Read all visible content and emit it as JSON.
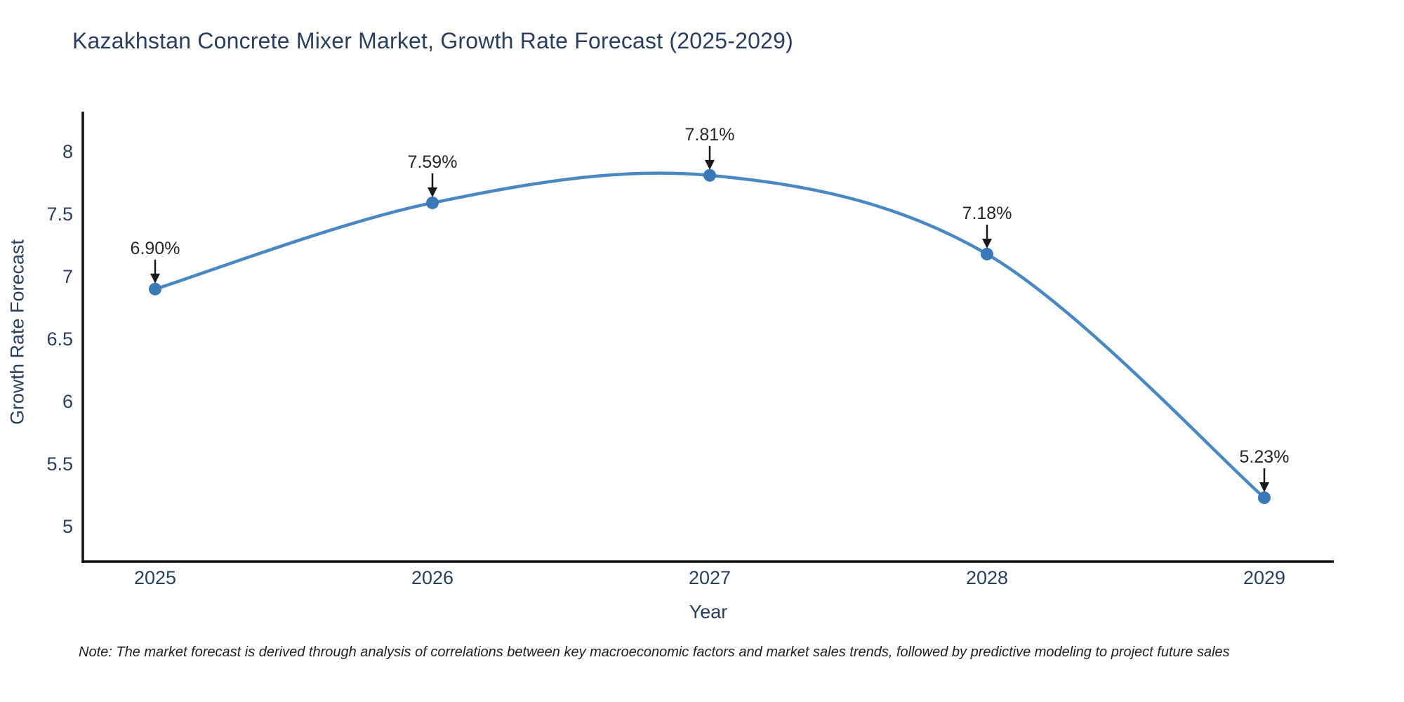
{
  "chart_data": {
    "type": "line",
    "title": "Kazakhstan Concrete Mixer Market, Growth Rate Forecast (2025-2029)",
    "xlabel": "Year",
    "ylabel": "Growth Rate Forecast",
    "x": [
      2025,
      2026,
      2027,
      2028,
      2029
    ],
    "y": [
      6.9,
      7.59,
      7.81,
      7.18,
      5.23
    ],
    "annotations": [
      "6.90%",
      "7.59%",
      "7.81%",
      "7.18%",
      "5.23%"
    ],
    "y_ticks": [
      8,
      7.5,
      7,
      6.5,
      6,
      5.5,
      5
    ],
    "ylim": [
      4.7,
      8.33
    ],
    "line_shape": "spline",
    "grid": false,
    "legend": "none",
    "colors": {
      "line": "#4a88c2",
      "marker": "#3a79b8",
      "axis": "#111111",
      "tick_text": "#2a3f5f",
      "annotation_text": "#262626",
      "arrow": "#1a1a1a"
    }
  },
  "note": {
    "text": "Note: The market forecast is derived through analysis of correlations between key macroeconomic factors and market sales trends, followed by predictive modeling to project future sales"
  }
}
